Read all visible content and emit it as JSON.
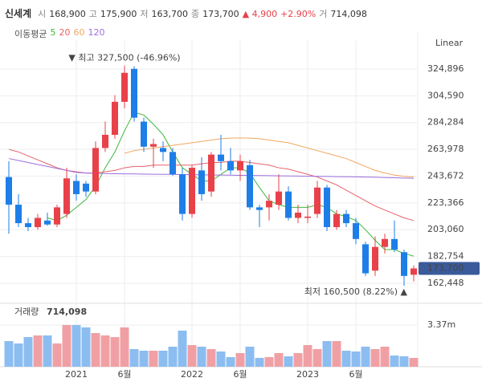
{
  "chart_data": {
    "type": "candlestick",
    "title": "신세계",
    "quote": [
      {
        "label": "시",
        "value": "168,900"
      },
      {
        "label": "고",
        "value": "175,900"
      },
      {
        "label": "저",
        "value": "163,700"
      },
      {
        "label": "종",
        "value": "173,700"
      }
    ],
    "change": "▲ 4,900",
    "change_pct": "+2.90%",
    "volume_quote": {
      "label": "거",
      "value": "714,098"
    },
    "legend_title": "이동평균",
    "scale_label": "Linear",
    "annotations": [
      "▼ 최고 327,500 (-46.96%)",
      "최저 160,500 (8.22%) ▲"
    ],
    "last_price_label": "173,700",
    "up_color": "#e8414a",
    "down_color": "#1e7ee8",
    "categories": [
      null,
      null,
      null,
      null,
      null,
      null,
      null,
      "2021",
      null,
      null,
      null,
      null,
      "6월",
      null,
      null,
      null,
      null,
      null,
      null,
      "2022",
      null,
      null,
      null,
      null,
      "6월",
      null,
      null,
      null,
      null,
      null,
      null,
      "2023",
      null,
      null,
      null,
      null,
      "6월",
      null,
      null,
      null,
      null,
      null,
      null
    ],
    "open": [
      243000,
      222000,
      208000,
      205000,
      210000,
      207000,
      215000,
      240000,
      238000,
      232000,
      265000,
      275000,
      300000,
      325000,
      285000,
      266000,
      265000,
      262000,
      245000,
      215000,
      248000,
      232000,
      260000,
      255000,
      248000,
      252000,
      220000,
      220000,
      222000,
      232000,
      212000,
      212000,
      215000,
      235000,
      205000,
      215000,
      208000,
      192000,
      172000,
      190000,
      196000,
      186000,
      168900
    ],
    "high": [
      255000,
      230000,
      212000,
      215000,
      216000,
      222000,
      250000,
      245000,
      240000,
      270000,
      285000,
      305000,
      327500,
      327000,
      288000,
      272000,
      270000,
      265000,
      250000,
      252000,
      258000,
      262000,
      275000,
      265000,
      260000,
      256000,
      222000,
      230000,
      245000,
      236000,
      222000,
      222000,
      240000,
      237000,
      218000,
      218000,
      212000,
      194000,
      198000,
      200000,
      210000,
      188000,
      175900
    ],
    "low": [
      200000,
      205000,
      202000,
      203000,
      206000,
      205000,
      212000,
      225000,
      228000,
      230000,
      262000,
      272000,
      295000,
      285000,
      262000,
      250000,
      255000,
      244000,
      210000,
      212000,
      225000,
      228000,
      248000,
      245000,
      240000,
      218000,
      205000,
      210000,
      218000,
      210000,
      208000,
      208000,
      212000,
      202000,
      203000,
      205000,
      192000,
      168000,
      168000,
      185000,
      186000,
      160500,
      163700
    ],
    "close": [
      222000,
      208000,
      205000,
      212000,
      207000,
      220000,
      242000,
      230000,
      232000,
      265000,
      275000,
      300000,
      322000,
      288000,
      266000,
      268000,
      262000,
      245000,
      215000,
      250000,
      230000,
      260000,
      255000,
      248000,
      255000,
      220000,
      218000,
      225000,
      232000,
      212000,
      216000,
      213000,
      235000,
      205000,
      215000,
      208000,
      196000,
      170000,
      190000,
      196000,
      188000,
      168000,
      173700
    ],
    "series": [
      {
        "name": "5",
        "color": "#3cb83c",
        "values": [
          null,
          null,
          null,
          null,
          212000,
          210000,
          214000,
          220000,
          226000,
          236000,
          250000,
          262000,
          278000,
          292000,
          290000,
          283000,
          275000,
          262000,
          250000,
          245000,
          240000,
          240000,
          245000,
          250000,
          250000,
          246000,
          235000,
          225000,
          222000,
          220000,
          220000,
          220000,
          222000,
          220000,
          215000,
          213000,
          210000,
          203000,
          195000,
          188000,
          188000,
          185000,
          183000
        ]
      },
      {
        "name": "20",
        "color": "#e8616a",
        "values": [
          264000,
          262000,
          259000,
          256000,
          253000,
          250000,
          248000,
          247000,
          246000,
          246000,
          247000,
          248000,
          250000,
          251000,
          251000,
          252000,
          252000,
          252000,
          252000,
          252000,
          253000,
          254000,
          254000,
          255000,
          255000,
          254000,
          253000,
          252000,
          250000,
          249000,
          247000,
          245000,
          243000,
          240000,
          237000,
          233000,
          229000,
          225000,
          221000,
          218000,
          215000,
          212000,
          210000
        ]
      },
      {
        "name": "60",
        "color": "#f0a860",
        "values": [
          null,
          null,
          null,
          null,
          null,
          null,
          null,
          null,
          null,
          null,
          null,
          null,
          261000,
          263000,
          264000,
          265000,
          266000,
          267000,
          268000,
          269000,
          270000,
          271000,
          272000,
          272500,
          272600,
          272500,
          272000,
          271000,
          270000,
          269000,
          267000,
          265000,
          263000,
          261000,
          259000,
          257000,
          254000,
          251000,
          248000,
          246000,
          244500,
          243500,
          243000
        ]
      },
      {
        "name": "120",
        "color": "#9c6ee0",
        "values": [
          257000,
          255500,
          254000,
          252500,
          251000,
          249500,
          248000,
          246500,
          246000,
          245800,
          245600,
          245500,
          245400,
          245300,
          245200,
          245100,
          245000,
          245000,
          244900,
          244800,
          244700,
          244600,
          244500,
          244400,
          244300,
          244200,
          244100,
          244000,
          243900,
          243800,
          243700,
          243600,
          243500,
          243400,
          243300,
          243200,
          243100,
          243000,
          242800,
          242600,
          242400,
          242200,
          242000
        ]
      }
    ],
    "ylim": [
      153300,
      340700
    ],
    "yticks": [
      {
        "value": 162448,
        "label": "162,448"
      },
      {
        "value": 182754,
        "label": "182,754"
      },
      {
        "value": 203060,
        "label": "203,060"
      },
      {
        "value": 223366,
        "label": "223,366"
      },
      {
        "value": 243672,
        "label": "243,672"
      },
      {
        "value": 263978,
        "label": "263,978"
      },
      {
        "value": 284284,
        "label": "284,284"
      },
      {
        "value": 304590,
        "label": "304,590"
      },
      {
        "value": 324896,
        "label": "324,896"
      }
    ],
    "volume": {
      "label": "거래량",
      "value_label": "714,098",
      "values": [
        2074000,
        1879000,
        2398000,
        2528000,
        2528000,
        1879000,
        3370000,
        3370000,
        3176000,
        2722000,
        2528000,
        2398000,
        3176000,
        1426000,
        1296000,
        1296000,
        1296000,
        1620000,
        2916000,
        1750000,
        1620000,
        1426000,
        1231000,
        778000,
        1102000,
        1620000,
        713000,
        778000,
        1102000,
        842000,
        1102000,
        1750000,
        1426000,
        2074000,
        2074000,
        1296000,
        1231000,
        1620000,
        1426000,
        1620000,
        907000,
        842000,
        714098
      ],
      "up_color": "#f0a0a4",
      "down_color": "#8cbdf0",
      "ylim": [
        0,
        5120000
      ],
      "yticks": [
        {
          "value": 3370000,
          "label": "3.37m"
        }
      ]
    }
  }
}
